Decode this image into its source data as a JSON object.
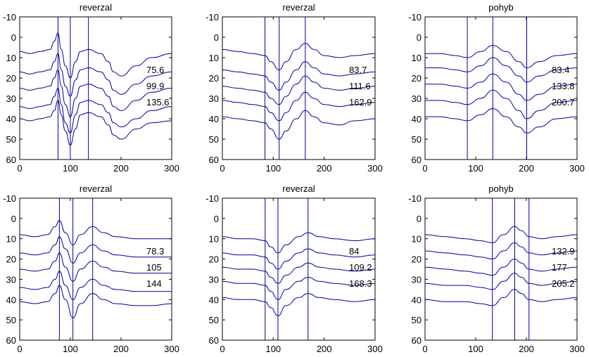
{
  "chart_data": [
    {
      "type": "line",
      "title": "reverzal",
      "xlim": [
        0,
        300
      ],
      "ylim": [
        -10,
        60
      ],
      "y_reversed": true,
      "xticks": [
        "0",
        "100",
        "200",
        "300"
      ],
      "yticks": [
        "-10",
        "0",
        "10",
        "20",
        "30",
        "40",
        "50",
        "60"
      ],
      "markers_x": [
        75.6,
        99.9,
        135.6
      ],
      "labels": [
        "75.6",
        "99.9",
        "135.6"
      ],
      "line_color": "#0000a0",
      "series": [
        {
          "x": [
            0,
            20,
            40,
            60,
            68,
            75.6,
            82,
            90,
            99.9,
            110,
            120,
            135.6,
            160,
            175,
            185,
            200,
            230,
            260,
            300
          ],
          "values": [
            7,
            8,
            7,
            6,
            2,
            -2,
            6,
            14,
            20,
            12,
            7,
            6,
            8,
            12,
            17,
            19,
            14,
            10,
            8
          ]
        },
        {
          "x": [
            0,
            20,
            40,
            60,
            68,
            75.6,
            82,
            90,
            99.9,
            110,
            120,
            135.6,
            160,
            175,
            185,
            200,
            230,
            260,
            300
          ],
          "values": [
            17,
            18,
            17,
            16,
            12,
            8,
            16,
            24,
            29,
            21,
            16,
            15,
            17,
            21,
            26,
            28,
            23,
            19,
            17
          ]
        },
        {
          "x": [
            0,
            20,
            40,
            60,
            68,
            75.6,
            82,
            90,
            99.9,
            110,
            120,
            135.6,
            160,
            175,
            185,
            200,
            230,
            260,
            300
          ],
          "values": [
            25,
            26,
            25,
            24,
            20,
            16,
            24,
            33,
            39,
            30,
            24,
            23,
            25,
            29,
            34,
            36,
            31,
            27,
            25
          ]
        },
        {
          "x": [
            0,
            20,
            40,
            60,
            68,
            75.6,
            82,
            90,
            99.9,
            110,
            120,
            135.6,
            160,
            175,
            185,
            200,
            230,
            260,
            300
          ],
          "values": [
            34,
            35,
            34,
            33,
            29,
            25,
            33,
            42,
            47,
            38,
            32,
            31,
            33,
            37,
            42,
            44,
            40,
            36,
            34
          ]
        },
        {
          "x": [
            0,
            20,
            40,
            60,
            68,
            75.6,
            82,
            90,
            99.9,
            110,
            120,
            135.6,
            160,
            175,
            185,
            200,
            230,
            260,
            300
          ],
          "values": [
            40,
            41,
            40,
            39,
            36,
            31,
            38,
            46,
            53,
            45,
            38,
            37,
            39,
            43,
            48,
            50,
            45,
            42,
            41
          ]
        }
      ]
    },
    {
      "type": "line",
      "title": "reverzal",
      "xlim": [
        0,
        300
      ],
      "ylim": [
        -10,
        60
      ],
      "y_reversed": true,
      "xticks": [
        "0",
        "100",
        "200",
        "300"
      ],
      "yticks": [
        "-10",
        "0",
        "10",
        "20",
        "30",
        "40",
        "50",
        "60"
      ],
      "markers_x": [
        83.7,
        111.6,
        162.9
      ],
      "labels": [
        "83.7",
        "111.6",
        "162.9"
      ],
      "line_color": "#0000a0",
      "series": [
        {
          "x": [
            0,
            30,
            60,
            83.7,
            95,
            111.6,
            125,
            145,
            162.9,
            180,
            200,
            230,
            260,
            300
          ],
          "values": [
            6,
            7,
            8,
            9,
            12,
            16,
            12,
            6,
            3,
            6,
            9,
            10,
            9,
            8
          ]
        },
        {
          "x": [
            0,
            30,
            60,
            83.7,
            95,
            111.6,
            125,
            145,
            162.9,
            180,
            200,
            230,
            260,
            300
          ],
          "values": [
            16,
            17,
            18,
            19,
            22,
            26,
            22,
            16,
            12,
            15,
            18,
            19,
            18,
            17
          ]
        },
        {
          "x": [
            0,
            30,
            60,
            83.7,
            95,
            111.6,
            125,
            145,
            162.9,
            180,
            200,
            230,
            260,
            300
          ],
          "values": [
            24,
            25,
            26,
            27,
            30,
            33,
            29,
            23,
            19,
            22,
            25,
            26,
            25,
            24
          ]
        },
        {
          "x": [
            0,
            30,
            60,
            83.7,
            95,
            111.6,
            125,
            145,
            162.9,
            180,
            200,
            230,
            260,
            300
          ],
          "values": [
            31,
            32,
            33,
            34,
            37,
            41,
            37,
            31,
            27,
            30,
            33,
            34,
            33,
            32
          ]
        },
        {
          "x": [
            0,
            30,
            60,
            83.7,
            95,
            111.6,
            125,
            145,
            162.9,
            180,
            200,
            230,
            260,
            300
          ],
          "values": [
            39,
            40,
            41,
            42,
            45,
            50,
            46,
            40,
            36,
            39,
            42,
            43,
            41,
            40
          ]
        }
      ]
    },
    {
      "type": "line",
      "title": "pohyb",
      "xlim": [
        0,
        300
      ],
      "ylim": [
        -10,
        60
      ],
      "y_reversed": true,
      "xticks": [
        "0",
        "100",
        "200",
        "300"
      ],
      "yticks": [
        "-10",
        "0",
        "10",
        "20",
        "30",
        "40",
        "50",
        "60"
      ],
      "markers_x": [
        83.4,
        133.8,
        200.7
      ],
      "labels": [
        "83.4",
        "133.8",
        "200.7"
      ],
      "line_color": "#0000a0",
      "series": [
        {
          "x": [
            0,
            30,
            60,
            83.4,
            110,
            133.8,
            160,
            185,
            200.7,
            225,
            260,
            300
          ],
          "values": [
            8,
            8,
            9,
            10,
            7,
            4,
            7,
            12,
            15,
            12,
            9,
            8
          ]
        },
        {
          "x": [
            0,
            30,
            60,
            83.4,
            110,
            133.8,
            160,
            185,
            200.7,
            225,
            260,
            300
          ],
          "values": [
            15,
            15,
            16,
            17,
            14,
            10,
            14,
            19,
            22,
            19,
            16,
            15
          ]
        },
        {
          "x": [
            0,
            30,
            60,
            83.4,
            110,
            133.8,
            160,
            185,
            200.7,
            225,
            260,
            300
          ],
          "values": [
            23,
            23,
            24,
            25,
            22,
            18,
            22,
            28,
            31,
            28,
            24,
            23
          ]
        },
        {
          "x": [
            0,
            30,
            60,
            83.4,
            110,
            133.8,
            160,
            185,
            200.7,
            225,
            260,
            300
          ],
          "values": [
            31,
            31,
            32,
            33,
            30,
            26,
            30,
            36,
            40,
            36,
            32,
            31
          ]
        },
        {
          "x": [
            0,
            30,
            60,
            83.4,
            110,
            133.8,
            160,
            185,
            200.7,
            225,
            260,
            300
          ],
          "values": [
            39,
            39,
            40,
            41,
            38,
            35,
            39,
            44,
            47,
            44,
            40,
            39
          ]
        }
      ]
    },
    {
      "type": "line",
      "title": "reverzal",
      "xlim": [
        0,
        300
      ],
      "ylim": [
        -10,
        60
      ],
      "y_reversed": true,
      "xticks": [
        "0",
        "100",
        "200",
        "300"
      ],
      "yticks": [
        "-10",
        "0",
        "10",
        "20",
        "30",
        "40",
        "50",
        "60"
      ],
      "markers_x": [
        78.3,
        105,
        144
      ],
      "labels": [
        "78.3",
        "105",
        "144"
      ],
      "line_color": "#0000a0",
      "series": [
        {
          "x": [
            0,
            30,
            55,
            70,
            78.3,
            90,
            105,
            120,
            144,
            165,
            190,
            230,
            260,
            300
          ],
          "values": [
            8,
            9,
            8,
            4,
            1,
            7,
            13,
            8,
            4,
            7,
            9,
            10,
            10,
            10
          ]
        },
        {
          "x": [
            0,
            30,
            55,
            70,
            78.3,
            90,
            105,
            120,
            144,
            165,
            190,
            230,
            260,
            300
          ],
          "values": [
            17,
            18,
            17,
            13,
            9,
            15,
            22,
            17,
            13,
            16,
            18,
            19,
            19,
            19
          ]
        },
        {
          "x": [
            0,
            30,
            55,
            70,
            78.3,
            90,
            105,
            120,
            144,
            165,
            190,
            230,
            260,
            300
          ],
          "values": [
            25,
            26,
            25,
            21,
            17,
            24,
            31,
            25,
            21,
            24,
            26,
            27,
            27,
            27
          ]
        },
        {
          "x": [
            0,
            30,
            55,
            70,
            78.3,
            90,
            105,
            120,
            144,
            165,
            190,
            230,
            260,
            300
          ],
          "values": [
            34,
            35,
            34,
            30,
            26,
            33,
            40,
            34,
            30,
            33,
            35,
            36,
            36,
            36
          ]
        },
        {
          "x": [
            0,
            30,
            55,
            70,
            78.3,
            90,
            105,
            120,
            144,
            165,
            190,
            230,
            260,
            300
          ],
          "values": [
            41,
            42,
            41,
            37,
            33,
            40,
            49,
            42,
            37,
            40,
            42,
            43,
            43,
            42
          ]
        }
      ]
    },
    {
      "type": "line",
      "title": "reverzal",
      "xlim": [
        0,
        300
      ],
      "ylim": [
        -10,
        60
      ],
      "y_reversed": true,
      "xticks": [
        "0",
        "100",
        "200",
        "300"
      ],
      "yticks": [
        "-10",
        "0",
        "10",
        "20",
        "30",
        "40",
        "50",
        "60"
      ],
      "markers_x": [
        84,
        109.2,
        168.3
      ],
      "labels": [
        "84",
        "109.2",
        "168.3"
      ],
      "line_color": "#0000a0",
      "series": [
        {
          "x": [
            0,
            30,
            60,
            84,
            95,
            109.2,
            125,
            150,
            168.3,
            190,
            220,
            260,
            300
          ],
          "values": [
            9,
            10,
            10,
            11,
            14,
            17,
            13,
            9,
            7,
            9,
            10,
            11,
            10
          ]
        },
        {
          "x": [
            0,
            30,
            60,
            84,
            95,
            109.2,
            125,
            150,
            168.3,
            190,
            220,
            260,
            300
          ],
          "values": [
            17,
            18,
            18,
            19,
            22,
            25,
            21,
            17,
            15,
            17,
            18,
            19,
            18
          ]
        },
        {
          "x": [
            0,
            30,
            60,
            84,
            95,
            109.2,
            125,
            150,
            168.3,
            190,
            220,
            260,
            300
          ],
          "values": [
            24,
            25,
            25,
            26,
            29,
            32,
            28,
            24,
            22,
            24,
            25,
            26,
            25
          ]
        },
        {
          "x": [
            0,
            30,
            60,
            84,
            95,
            109.2,
            125,
            150,
            168.3,
            190,
            220,
            260,
            300
          ],
          "values": [
            31,
            32,
            32,
            33,
            36,
            40,
            35,
            31,
            29,
            31,
            32,
            33,
            32
          ]
        },
        {
          "x": [
            0,
            30,
            60,
            84,
            95,
            109.2,
            125,
            150,
            168.3,
            190,
            220,
            260,
            300
          ],
          "values": [
            39,
            40,
            40,
            41,
            44,
            48,
            43,
            39,
            37,
            39,
            40,
            41,
            40
          ]
        }
      ]
    },
    {
      "type": "line",
      "title": "pohyb",
      "xlim": [
        0,
        300
      ],
      "ylim": [
        -10,
        60
      ],
      "y_reversed": true,
      "xticks": [
        "0",
        "100",
        "200",
        "300"
      ],
      "yticks": [
        "-10",
        "0",
        "10",
        "20",
        "30",
        "40",
        "50",
        "60"
      ],
      "markers_x": [
        132.9,
        177,
        205.2
      ],
      "labels": [
        "132.9",
        "177",
        "205.2"
      ],
      "line_color": "#0000a0",
      "series": [
        {
          "x": [
            0,
            40,
            80,
            110,
            132.9,
            155,
            177,
            190,
            205.2,
            230,
            260,
            300
          ],
          "values": [
            8,
            9,
            10,
            11,
            12,
            8,
            4,
            6,
            9,
            10,
            9,
            8
          ]
        },
        {
          "x": [
            0,
            40,
            80,
            110,
            132.9,
            155,
            177,
            190,
            205.2,
            230,
            260,
            300
          ],
          "values": [
            16,
            17,
            18,
            19,
            20,
            16,
            12,
            14,
            17,
            18,
            17,
            16
          ]
        },
        {
          "x": [
            0,
            40,
            80,
            110,
            132.9,
            155,
            177,
            190,
            205.2,
            230,
            260,
            300
          ],
          "values": [
            24,
            25,
            26,
            27,
            28,
            24,
            20,
            22,
            25,
            26,
            25,
            24
          ]
        },
        {
          "x": [
            0,
            40,
            80,
            110,
            132.9,
            155,
            177,
            190,
            205.2,
            230,
            260,
            300
          ],
          "values": [
            32,
            33,
            33,
            34,
            35,
            31,
            27,
            29,
            32,
            33,
            32,
            31
          ]
        },
        {
          "x": [
            0,
            40,
            80,
            110,
            132.9,
            155,
            177,
            190,
            205.2,
            230,
            260,
            300
          ],
          "values": [
            40,
            41,
            41,
            42,
            43,
            39,
            35,
            37,
            40,
            41,
            40,
            39
          ]
        }
      ]
    }
  ]
}
